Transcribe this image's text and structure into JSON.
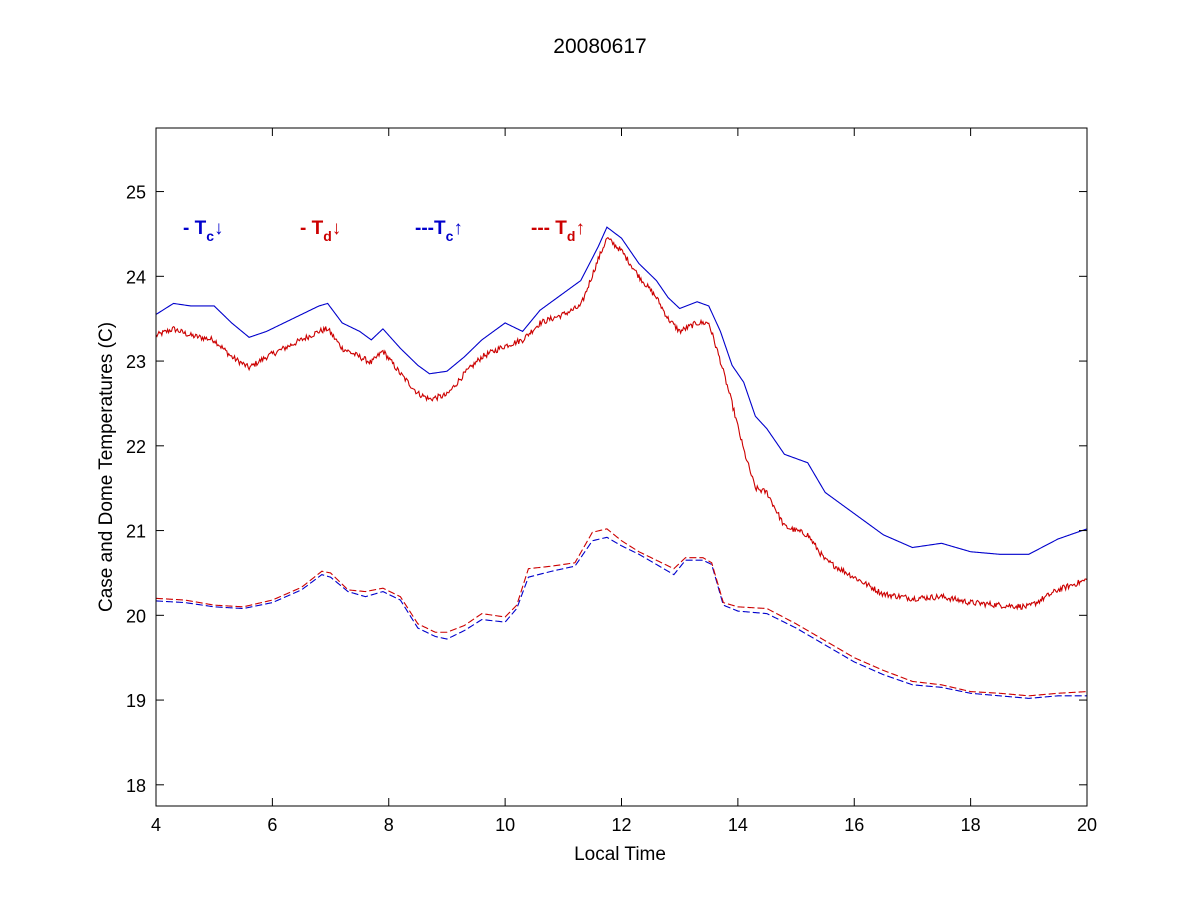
{
  "chart_data": {
    "type": "line",
    "title": "20080617",
    "xlabel": "Local Time",
    "ylabel": "Case and Dome Temperatures (C)",
    "xlim": [
      4,
      20
    ],
    "ylim": [
      17.75,
      25.75
    ],
    "xticks": [
      4,
      6,
      8,
      10,
      12,
      14,
      16,
      18,
      20
    ],
    "yticks": [
      18,
      19,
      20,
      21,
      22,
      23,
      24,
      25
    ],
    "grid": false,
    "legend": [
      {
        "prefix": "- T",
        "sub": "c",
        "arrow": "↓",
        "color": "#0000cc"
      },
      {
        "prefix": "- T",
        "sub": "d",
        "arrow": "↓",
        "color": "#cc0000"
      },
      {
        "prefix": "---T",
        "sub": "c",
        "arrow": "↑",
        "color": "#0000cc"
      },
      {
        "prefix": "--- T",
        "sub": "d",
        "arrow": "↑",
        "color": "#cc0000"
      }
    ],
    "series": [
      {
        "id": "tc-down",
        "color": "#0000cc",
        "dash": "solid",
        "noise": 0,
        "x": [
          4.0,
          4.3,
          4.6,
          5.0,
          5.3,
          5.6,
          5.9,
          6.2,
          6.5,
          6.8,
          6.95,
          7.2,
          7.5,
          7.7,
          7.9,
          8.2,
          8.5,
          8.7,
          9.0,
          9.3,
          9.6,
          10.0,
          10.3,
          10.6,
          11.0,
          11.3,
          11.6,
          11.75,
          12.0,
          12.3,
          12.6,
          12.8,
          13.0,
          13.3,
          13.5,
          13.7,
          13.9,
          14.1,
          14.3,
          14.5,
          14.8,
          15.2,
          15.5,
          16.0,
          16.5,
          17.0,
          17.5,
          18.0,
          18.5,
          19.0,
          19.5,
          20.0
        ],
        "y": [
          23.55,
          23.68,
          23.65,
          23.65,
          23.45,
          23.28,
          23.35,
          23.45,
          23.55,
          23.65,
          23.68,
          23.45,
          23.35,
          23.25,
          23.38,
          23.15,
          22.95,
          22.85,
          22.88,
          23.05,
          23.25,
          23.45,
          23.35,
          23.6,
          23.8,
          23.95,
          24.35,
          24.58,
          24.45,
          24.15,
          23.95,
          23.75,
          23.62,
          23.7,
          23.65,
          23.35,
          22.95,
          22.75,
          22.35,
          22.2,
          21.9,
          21.8,
          21.45,
          21.2,
          20.95,
          20.8,
          20.85,
          20.75,
          20.72,
          20.72,
          20.9,
          21.02
        ]
      },
      {
        "id": "td-down",
        "color": "#cc0000",
        "dash": "solid",
        "noise": 0.035,
        "x": [
          4.0,
          4.3,
          4.6,
          5.0,
          5.3,
          5.6,
          5.9,
          6.2,
          6.5,
          6.8,
          6.95,
          7.2,
          7.5,
          7.7,
          7.9,
          8.2,
          8.5,
          8.7,
          9.0,
          9.3,
          9.6,
          10.0,
          10.3,
          10.6,
          11.0,
          11.3,
          11.6,
          11.75,
          12.0,
          12.3,
          12.6,
          12.8,
          13.0,
          13.3,
          13.5,
          13.7,
          13.9,
          14.1,
          14.3,
          14.5,
          14.8,
          15.2,
          15.5,
          16.0,
          16.5,
          17.0,
          17.5,
          18.0,
          18.5,
          19.0,
          19.5,
          20.0
        ],
        "y": [
          23.3,
          23.38,
          23.3,
          23.25,
          23.05,
          22.92,
          23.05,
          23.15,
          23.25,
          23.35,
          23.38,
          23.15,
          23.05,
          22.98,
          23.12,
          22.85,
          22.62,
          22.55,
          22.6,
          22.85,
          23.05,
          23.18,
          23.25,
          23.45,
          23.55,
          23.65,
          24.2,
          24.45,
          24.3,
          24.0,
          23.75,
          23.5,
          23.35,
          23.45,
          23.45,
          23.0,
          22.5,
          21.95,
          21.5,
          21.45,
          21.05,
          20.95,
          20.65,
          20.45,
          20.25,
          20.2,
          20.22,
          20.15,
          20.12,
          20.1,
          20.3,
          20.42
        ]
      },
      {
        "id": "tc-up",
        "color": "#0000cc",
        "dash": "dashed",
        "noise": 0,
        "x": [
          4.0,
          4.5,
          5.0,
          5.5,
          6.0,
          6.5,
          6.85,
          7.0,
          7.3,
          7.6,
          7.9,
          8.2,
          8.5,
          8.8,
          9.0,
          9.3,
          9.6,
          10.0,
          10.2,
          10.4,
          10.8,
          11.2,
          11.5,
          11.75,
          12.0,
          12.3,
          12.6,
          12.9,
          13.1,
          13.4,
          13.55,
          13.75,
          14.0,
          14.5,
          15.0,
          15.5,
          16.0,
          16.5,
          17.0,
          17.5,
          18.0,
          18.5,
          19.0,
          19.5,
          20.0
        ],
        "y": [
          20.17,
          20.15,
          20.1,
          20.08,
          20.15,
          20.3,
          20.48,
          20.45,
          20.28,
          20.22,
          20.28,
          20.18,
          19.85,
          19.75,
          19.72,
          19.82,
          19.95,
          19.92,
          20.08,
          20.45,
          20.52,
          20.58,
          20.88,
          20.92,
          20.82,
          20.72,
          20.6,
          20.48,
          20.65,
          20.65,
          20.6,
          20.12,
          20.05,
          20.02,
          19.85,
          19.65,
          19.45,
          19.3,
          19.18,
          19.15,
          19.08,
          19.05,
          19.02,
          19.05,
          19.05
        ]
      },
      {
        "id": "td-up",
        "color": "#cc0000",
        "dash": "dashed",
        "noise": 0,
        "x": [
          4.0,
          4.5,
          5.0,
          5.5,
          6.0,
          6.5,
          6.85,
          7.0,
          7.3,
          7.6,
          7.9,
          8.2,
          8.5,
          8.8,
          9.0,
          9.3,
          9.6,
          10.0,
          10.2,
          10.4,
          10.8,
          11.2,
          11.5,
          11.75,
          12.0,
          12.3,
          12.6,
          12.9,
          13.1,
          13.4,
          13.55,
          13.75,
          14.0,
          14.5,
          15.0,
          15.5,
          16.0,
          16.5,
          17.0,
          17.5,
          18.0,
          18.5,
          19.0,
          19.5,
          20.0
        ],
        "y": [
          20.2,
          20.18,
          20.12,
          20.1,
          20.18,
          20.33,
          20.52,
          20.5,
          20.3,
          20.28,
          20.32,
          20.22,
          19.9,
          19.8,
          19.8,
          19.88,
          20.02,
          19.98,
          20.12,
          20.55,
          20.58,
          20.62,
          20.98,
          21.02,
          20.88,
          20.75,
          20.65,
          20.55,
          20.68,
          20.68,
          20.62,
          20.15,
          20.1,
          20.08,
          19.9,
          19.7,
          19.5,
          19.35,
          19.22,
          19.18,
          19.1,
          19.08,
          19.05,
          19.08,
          19.1
        ]
      }
    ]
  }
}
